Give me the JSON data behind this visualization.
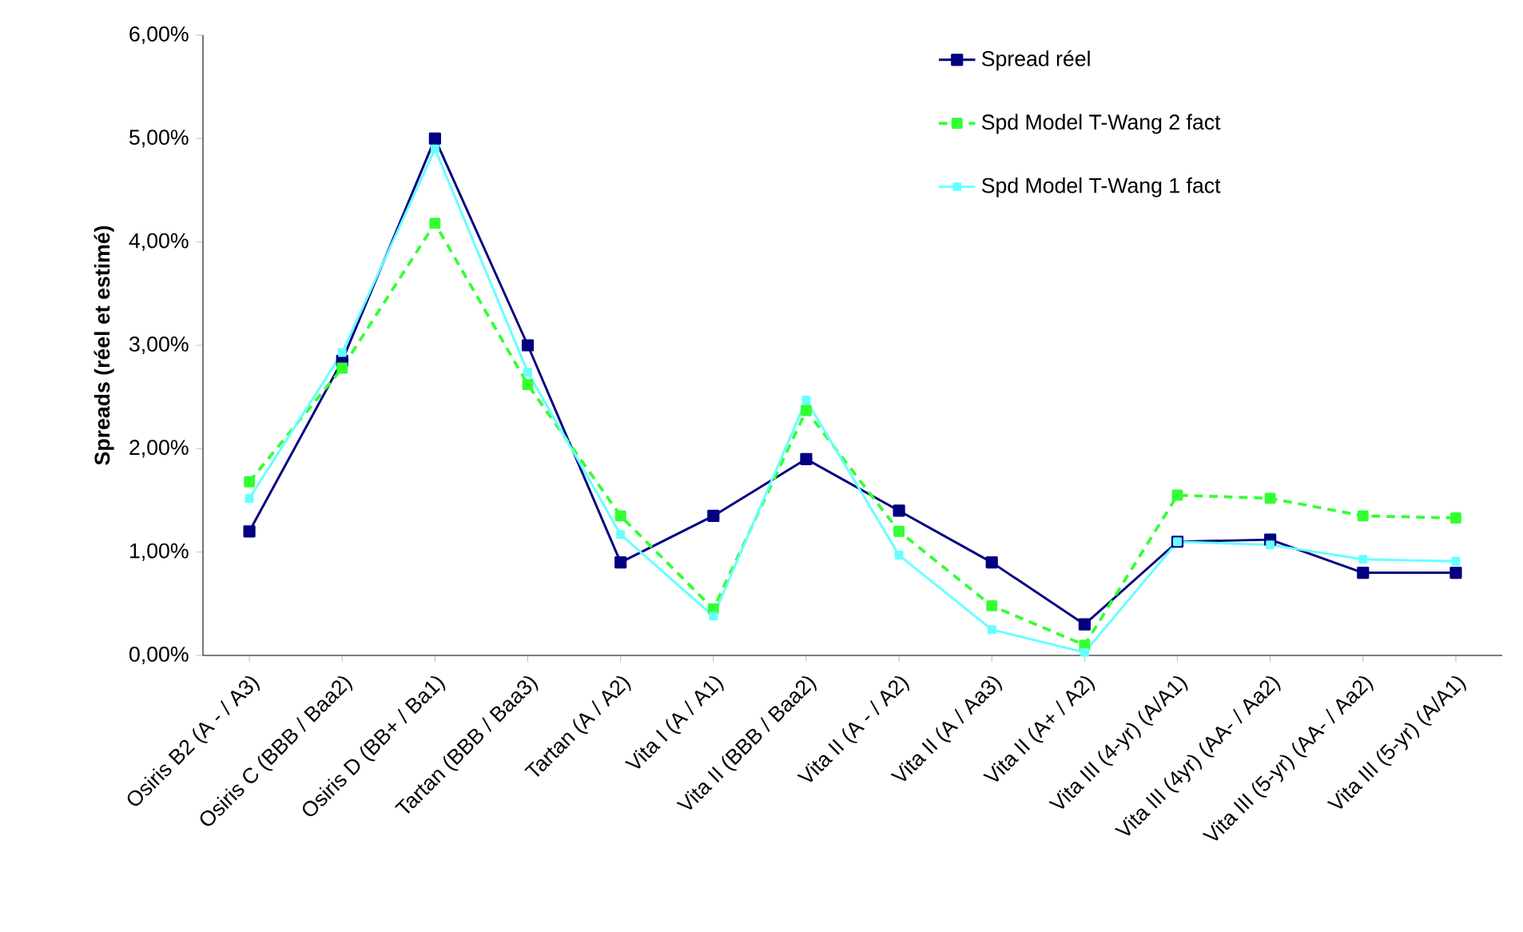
{
  "chart_data": {
    "type": "line",
    "ylabel": "Spreads (réel et estimé)",
    "categories": [
      "Osiris B2 (A - / A3)",
      "Osiris C (BBB / Baa2)",
      "Osiris D (BB+ / Ba1)",
      "Tartan (BBB / Baa3)",
      "Tartan (A / A2)",
      "Vita I (A / A1)",
      "Vita II (BBB / Baa2)",
      "Vita II (A - / A2)",
      "Vita II (A / Aa3)",
      "Vita II (A+ / A2)",
      "Vita III  (4-yr) (A/A1)",
      "Vita III (4yr) (AA- / Aa2)",
      "Vita III (5-yr) (AA- / Aa2)",
      "Vita III (5-yr) (A/A1)"
    ],
    "series": [
      {
        "name": "Spread réel",
        "color": "#000080",
        "line_style": "solid",
        "values": [
          1.2,
          2.85,
          5.0,
          3.0,
          0.9,
          1.35,
          1.9,
          1.4,
          0.9,
          0.3,
          1.1,
          1.12,
          0.8,
          0.8
        ]
      },
      {
        "name": "Spd Model T-Wang 2 fact",
        "color": "#33ff33",
        "line_style": "dashed",
        "values": [
          1.68,
          2.78,
          4.18,
          2.62,
          1.35,
          0.45,
          2.37,
          1.2,
          0.48,
          0.1,
          1.55,
          1.52,
          1.35,
          1.33
        ]
      },
      {
        "name": "Spd Model T-Wang 1 fact",
        "color": "#66ffff",
        "line_style": "solid",
        "values": [
          1.52,
          2.93,
          4.9,
          2.74,
          1.17,
          0.38,
          2.47,
          0.97,
          0.25,
          0.03,
          1.1,
          1.07,
          0.93,
          0.91
        ]
      }
    ],
    "ylim": [
      0,
      6
    ],
    "yticks": [
      {
        "value": 0,
        "label": "0,00%"
      },
      {
        "value": 1,
        "label": "1,00%"
      },
      {
        "value": 2,
        "label": "2,00%"
      },
      {
        "value": 3,
        "label": "3,00%"
      },
      {
        "value": 4,
        "label": "4,00%"
      },
      {
        "value": 5,
        "label": "5,00%"
      },
      {
        "value": 6,
        "label": "6,00%"
      }
    ],
    "legend": "top right",
    "marker": "square",
    "grid": false
  }
}
